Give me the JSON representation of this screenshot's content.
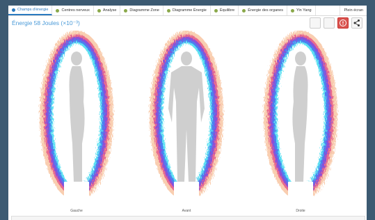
{
  "tabs": [
    "Champs d'énergie",
    "Centres nerveux",
    "Analyse",
    "Diagramme Zone",
    "Diagramme Énergie",
    "Équilibre",
    "Énergie des organes",
    "Yin Yang"
  ],
  "fullscreen": "Plein écran",
  "title": "Énergie 58 Joules (×10⁻³)",
  "views": [
    "Gauche",
    "Avant",
    "Droite"
  ]
}
